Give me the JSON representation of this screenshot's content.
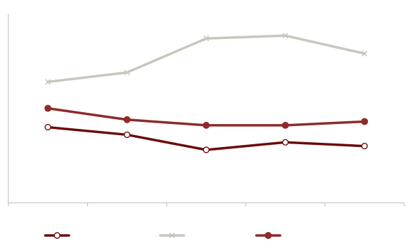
{
  "chart_data": {
    "type": "line",
    "title": "",
    "xlabel": "",
    "ylabel": "",
    "categories": [
      "",
      "",
      "",
      "",
      ""
    ],
    "ylim": [
      0,
      100
    ],
    "grid": false,
    "legend_position": "bottom",
    "series": [
      {
        "name": "",
        "color": "#6b0a0a",
        "marker": "circle-open",
        "values": [
          40,
          36,
          28,
          32,
          30
        ]
      },
      {
        "name": "",
        "color": "#c8c6bd",
        "marker": "x",
        "values": [
          64,
          69,
          87,
          88.5,
          79
        ]
      },
      {
        "name": "",
        "color": "#8e2a2a",
        "marker": "circle-filled",
        "values": [
          50,
          44,
          41,
          41,
          43
        ]
      }
    ]
  }
}
